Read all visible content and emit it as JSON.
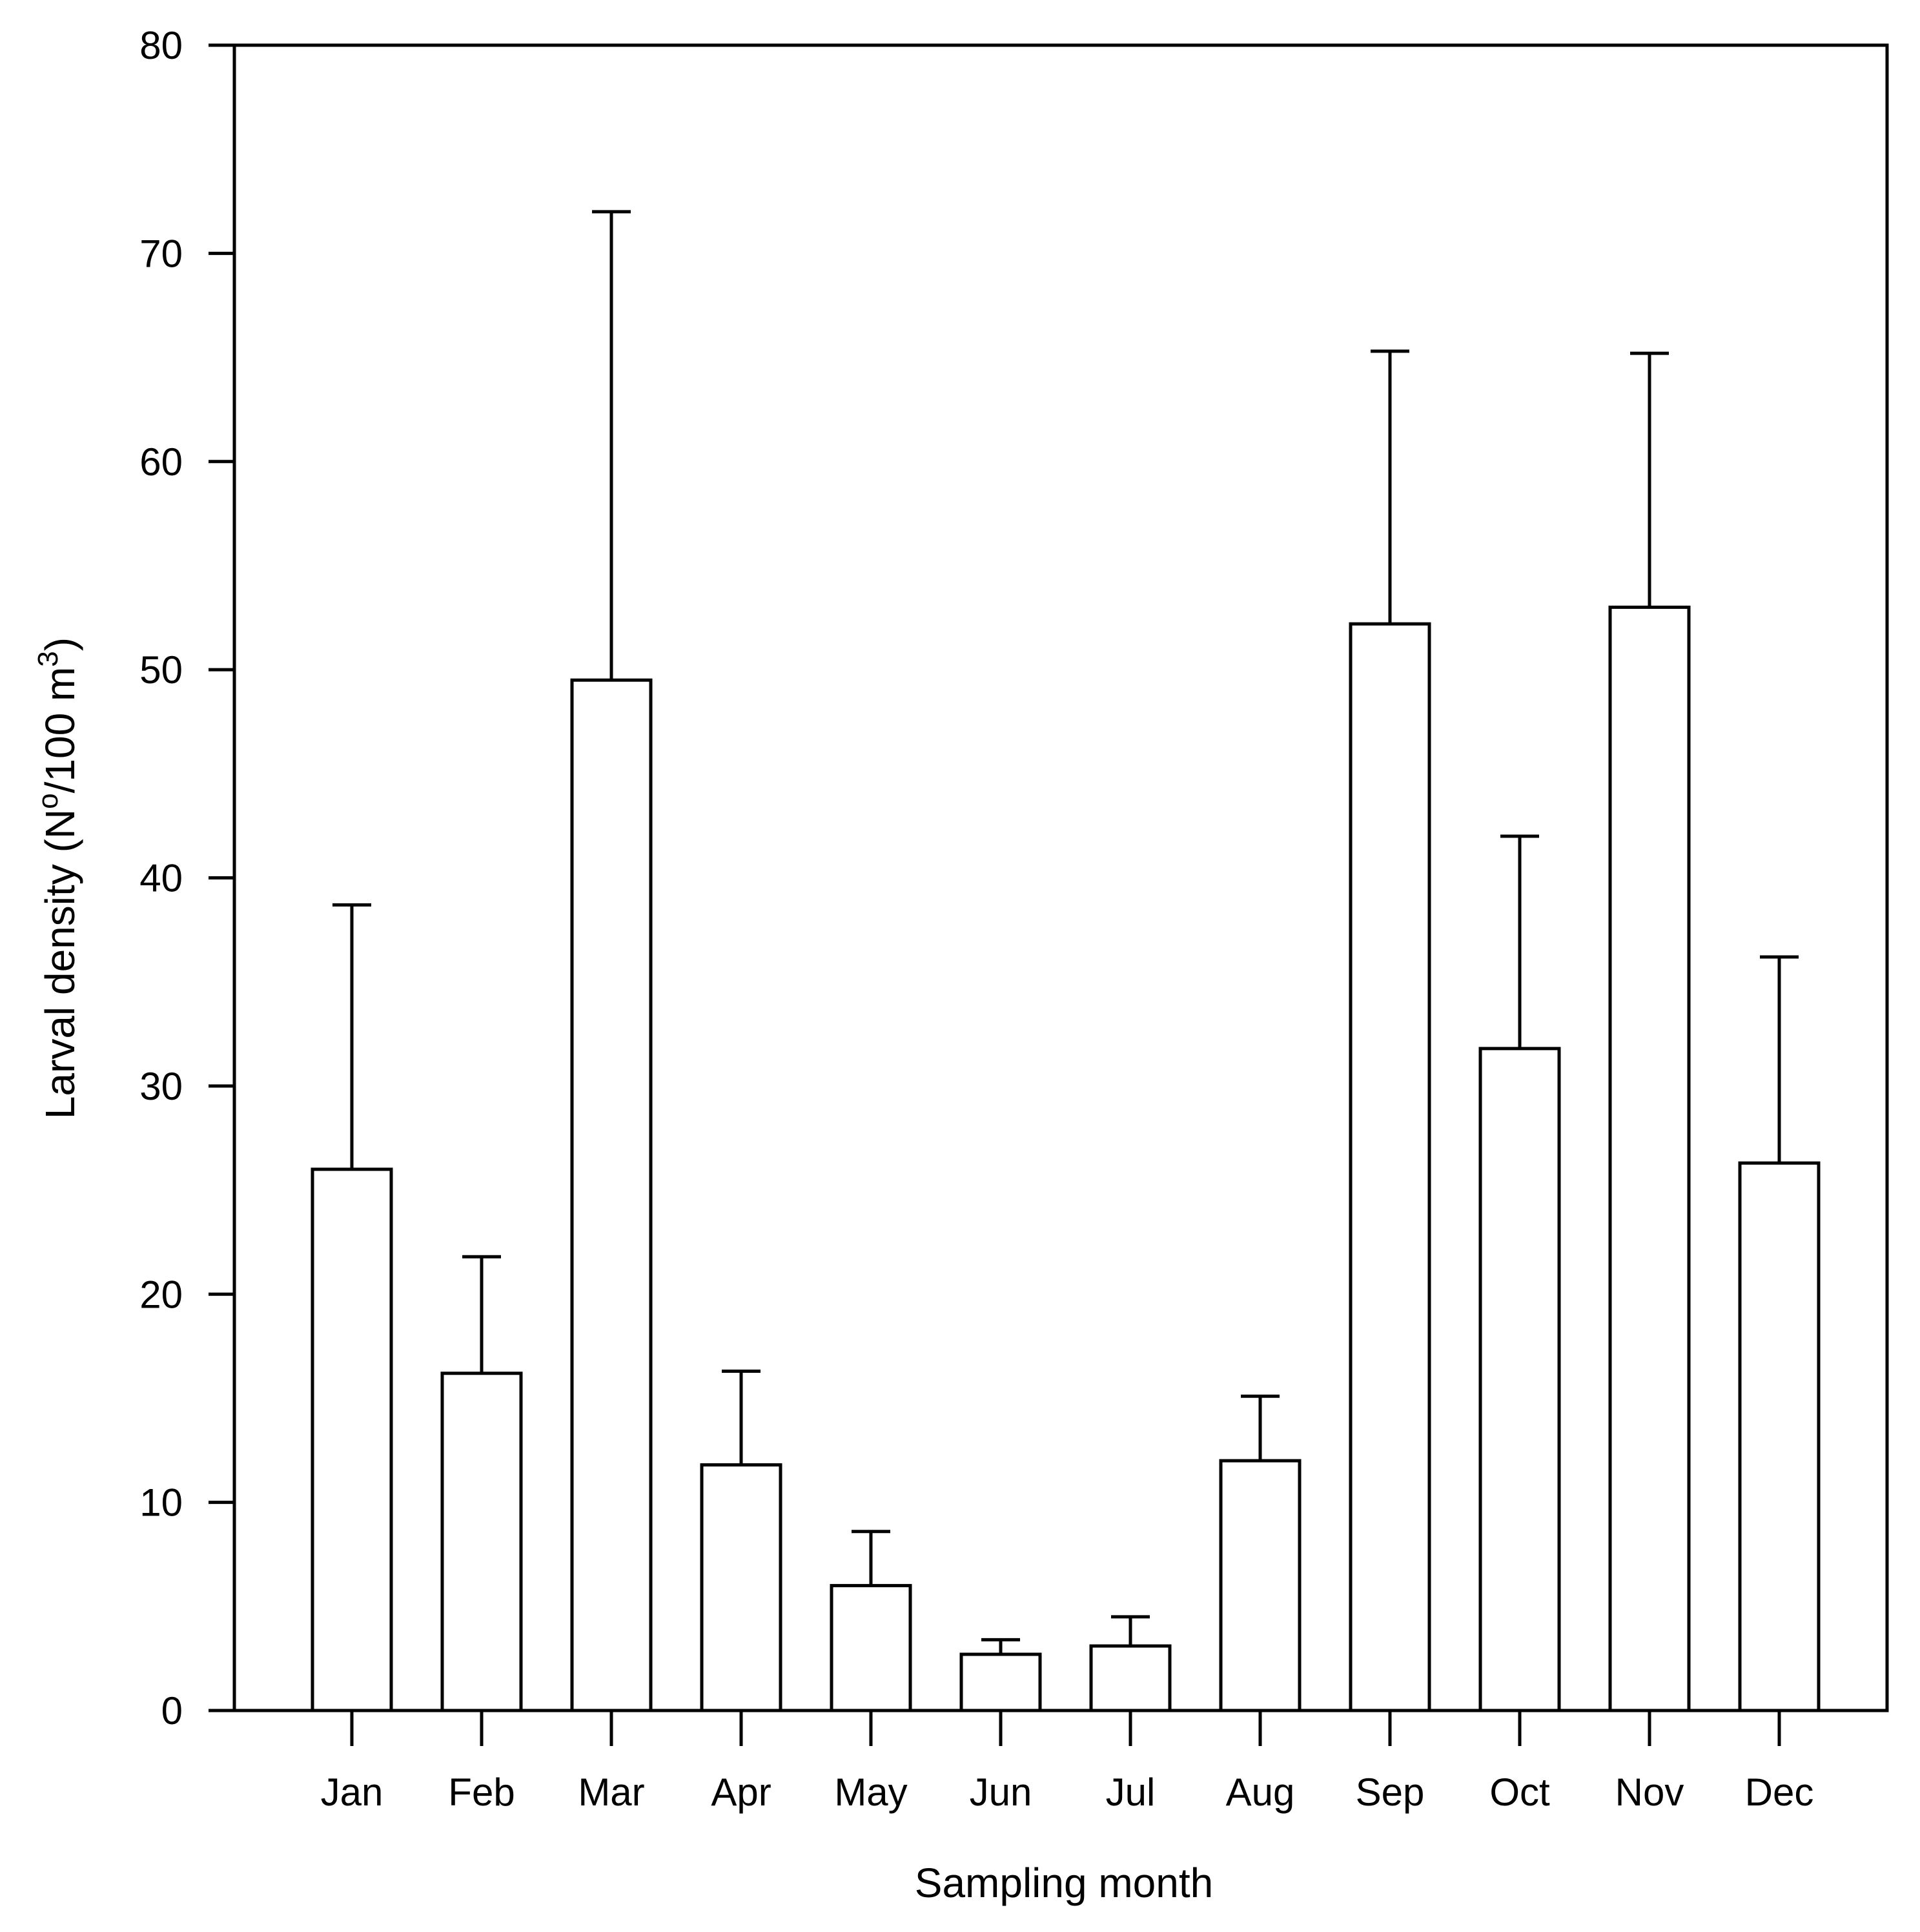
{
  "chart_data": {
    "type": "bar",
    "title": "",
    "xlabel": "Sampling month",
    "ylabel": {
      "prefix": "Larval density (N",
      "sup1": "o",
      "middle": "/100 m",
      "sup2": "3",
      "suffix": ")"
    },
    "categories": [
      "Jan",
      "Feb",
      "Mar",
      "Apr",
      "May",
      "Jun",
      "Jul",
      "Aug",
      "Sep",
      "Oct",
      "Nov",
      "Dec"
    ],
    "values": [
      26.0,
      16.2,
      49.5,
      11.8,
      6.0,
      2.7,
      3.1,
      12.0,
      52.2,
      31.8,
      53.0,
      26.3
    ],
    "error_upper": [
      38.7,
      21.8,
      72.0,
      16.3,
      8.6,
      3.4,
      4.5,
      15.1,
      65.3,
      42.0,
      65.2,
      36.2
    ],
    "ylim": [
      0,
      80
    ],
    "yticks": [
      "0",
      "10",
      "20",
      "30",
      "40",
      "50",
      "60",
      "70",
      "80"
    ],
    "grid": false,
    "legend": false
  },
  "colors": {
    "bar_fill": "#ffffff",
    "stroke": "#000000"
  }
}
